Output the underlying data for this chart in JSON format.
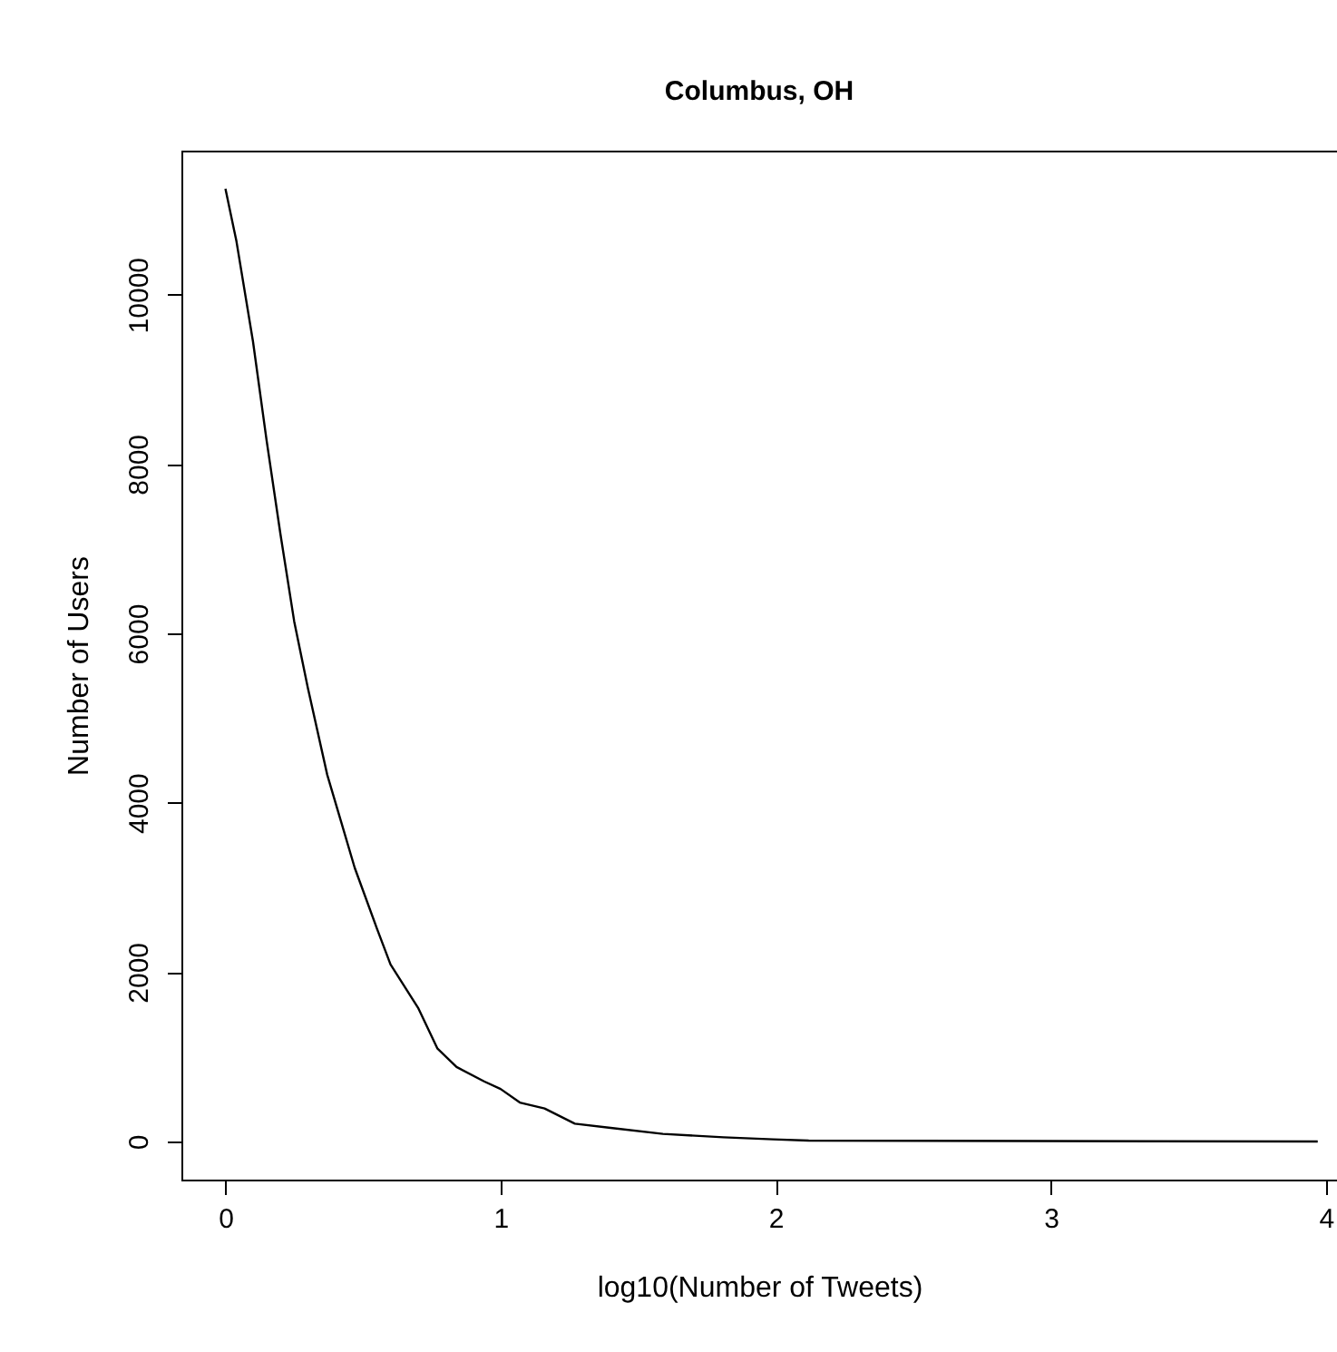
{
  "chart_data": {
    "type": "line",
    "title": "Columbus, OH",
    "xlabel": "log10(Number of Tweets)",
    "ylabel": "Number of Users",
    "x": [
      0,
      0.04,
      0.1,
      0.15,
      0.2,
      0.25,
      0.3,
      0.37,
      0.42,
      0.47,
      0.55,
      0.6,
      0.7,
      0.77,
      0.84,
      0.94,
      1.0,
      1.07,
      1.16,
      1.27,
      1.4,
      1.59,
      1.81,
      1.99,
      2.12,
      3.97
    ],
    "values": [
      11250,
      10630,
      9450,
      8270,
      7170,
      6140,
      5350,
      4330,
      3780,
      3230,
      2520,
      2090,
      1580,
      1100,
      880,
      710,
      620,
      460,
      390,
      210,
      160,
      90,
      50,
      25,
      10,
      0
    ],
    "color": "#000000",
    "xlim": [
      -0.16,
      4.04
    ],
    "ylim": [
      -450,
      11700
    ],
    "xticks": [
      0,
      1,
      2,
      3,
      4
    ],
    "yticks": [
      0,
      2000,
      4000,
      6000,
      8000,
      10000
    ],
    "grid": false,
    "marker": "none",
    "line_style": "solid"
  }
}
